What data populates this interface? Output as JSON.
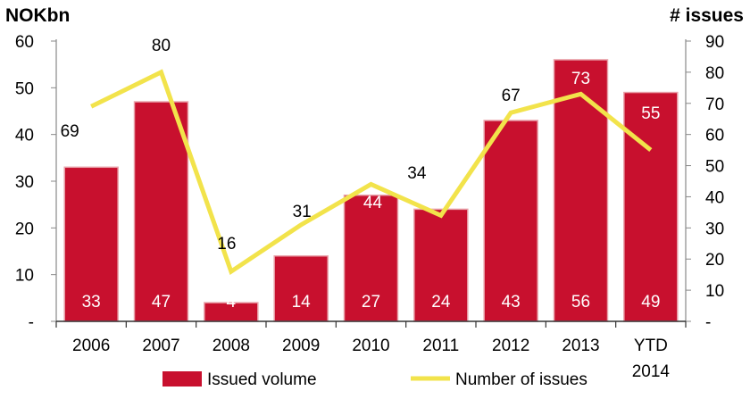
{
  "chart_data": {
    "type": "bar",
    "categories": [
      "2006",
      "2007",
      "2008",
      "2009",
      "2010",
      "2011",
      "2012",
      "2013",
      "YTD 2014"
    ],
    "series": [
      {
        "name": "Issued volume",
        "type": "bar",
        "axis": "left",
        "color": "#c8102e",
        "values": [
          33,
          47,
          4,
          14,
          27,
          24,
          43,
          56,
          49
        ]
      },
      {
        "name": "Number of issues",
        "type": "line",
        "axis": "right",
        "color": "#f2e34b",
        "values": [
          69,
          80,
          16,
          31,
          44,
          34,
          67,
          73,
          55
        ]
      }
    ],
    "left_axis": {
      "title": "NOKbn",
      "ylim": [
        0,
        60
      ],
      "ticks": [
        "-",
        "10",
        "20",
        "30",
        "40",
        "50",
        "60"
      ]
    },
    "right_axis": {
      "title": "# issues",
      "ylim": [
        0,
        90
      ],
      "ticks": [
        "-",
        "10",
        "20",
        "30",
        "40",
        "50",
        "60",
        "70",
        "80",
        "90"
      ]
    },
    "legend": {
      "placement": "bottom",
      "items": [
        "Issued volume",
        "Number of issues"
      ]
    }
  }
}
